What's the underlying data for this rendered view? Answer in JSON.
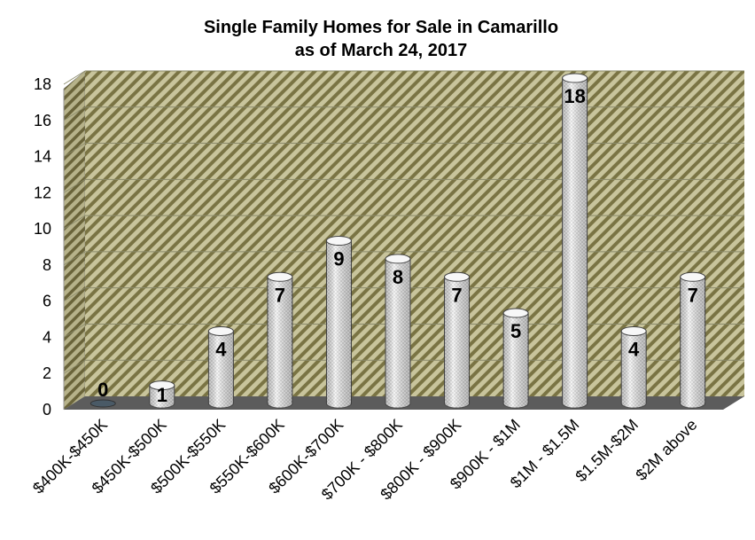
{
  "chart_data": {
    "type": "bar",
    "title": [
      "Single Family Homes for Sale in Camarillo",
      "as of March 24, 2017"
    ],
    "categories": [
      "$400K-$450K",
      "$450K-$500K",
      "$500K-$550K",
      "$550K-$600K",
      "$600K-$700K",
      "$700K - $800K",
      "$800K - $900K",
      "$900K  - $1M",
      "$1M - $1.5M",
      "$1.5M-$2M",
      "$2M above"
    ],
    "values": [
      0,
      1,
      4,
      7,
      9,
      8,
      7,
      5,
      18,
      4,
      7
    ],
    "ylim": [
      0,
      18
    ],
    "yticks": [
      0,
      2,
      4,
      6,
      8,
      10,
      12,
      14,
      16,
      18
    ],
    "grid": true,
    "legend": "none",
    "colors": {
      "wall_background": "#c8c49c",
      "wall_stripe": "#7a7444",
      "bar_fill": "#f2f2f2",
      "bar_dots": "#8a8a8a",
      "bar_edge": "#444444",
      "floor": "#5c5c5c"
    }
  }
}
